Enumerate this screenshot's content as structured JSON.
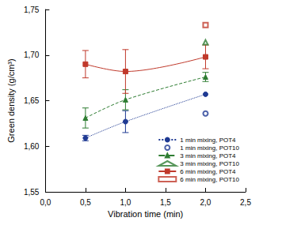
{
  "chart_data": {
    "type": "line",
    "x_label": "Vibration time (min)",
    "y_label": "Green density (g/cm³)",
    "xlim": [
      0,
      2.5
    ],
    "xticks": [
      {
        "value": 0,
        "label": "0,0"
      },
      {
        "value": 0.5,
        "label": "0,5"
      },
      {
        "value": 1,
        "label": "1,0"
      },
      {
        "value": 1.5,
        "label": "1,5"
      },
      {
        "value": 2,
        "label": "2,0"
      },
      {
        "value": 2.5,
        "label": "2,5"
      }
    ],
    "ylim": [
      1.55,
      1.75
    ],
    "yticks": [
      {
        "value": 1.55,
        "label": "1,55"
      },
      {
        "value": 1.6,
        "label": "1,60"
      },
      {
        "value": 1.65,
        "label": "1,65"
      },
      {
        "value": 1.7,
        "label": "1,70"
      },
      {
        "value": 1.75,
        "label": "1,75"
      }
    ],
    "grid": false,
    "legend": "lower right",
    "series": [
      {
        "name": "1 min mixing, POT4",
        "type": "line",
        "color": "#1f3a93",
        "marker": "circle",
        "line_style": "dotted",
        "x": [
          0.5,
          1,
          2
        ],
        "values": [
          1.609,
          1.627,
          1.657
        ],
        "errors": [
          0.003,
          0.012,
          null
        ]
      },
      {
        "name": "1 min mixing, POT10",
        "type": "scatter",
        "color": "#1f3a93",
        "marker": "open_circle",
        "x": [
          2
        ],
        "values": [
          1.636
        ],
        "errors": [
          null
        ]
      },
      {
        "name": "3 min mixing, POT4",
        "type": "line",
        "color": "#2e7d32",
        "marker": "triangle",
        "line_style": "dashed",
        "x": [
          0.5,
          1,
          2
        ],
        "values": [
          1.631,
          1.651,
          1.676
        ],
        "errors": [
          0.011,
          0.011,
          0.005
        ]
      },
      {
        "name": "3 min mixing, POT10",
        "type": "scatter",
        "color": "#2e7d32",
        "marker": "open_triangle",
        "x": [
          2
        ],
        "values": [
          1.714
        ],
        "errors": [
          null
        ]
      },
      {
        "name": "6 min mixing, POT4",
        "type": "line",
        "color": "#c0392b",
        "marker": "square",
        "line_style": "solid",
        "x": [
          0.5,
          1,
          2
        ],
        "values": [
          1.69,
          1.682,
          1.698
        ],
        "errors": [
          0.015,
          0.024,
          0.013
        ]
      },
      {
        "name": "6 min mixing, POT10",
        "type": "scatter",
        "color": "#c0392b",
        "marker": "open_square",
        "x": [
          2
        ],
        "values": [
          1.733
        ],
        "errors": [
          null
        ]
      }
    ]
  }
}
